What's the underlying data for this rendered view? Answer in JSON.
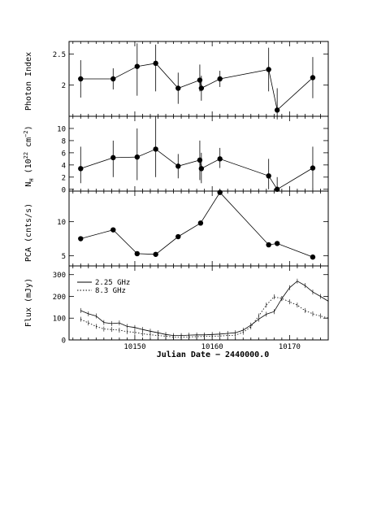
{
  "chart_data": [
    {
      "type": "scatter",
      "ylabel": "Photon Index",
      "xlim": [
        10141.5,
        10175
      ],
      "ylim": [
        1.5,
        2.7
      ],
      "yticks": [
        2,
        2.5
      ],
      "points": [
        {
          "x": 10143.0,
          "y": 2.1,
          "err": [
            0.3,
            0.3
          ]
        },
        {
          "x": 10147.2,
          "y": 2.1,
          "err": [
            0.17,
            0.17
          ]
        },
        {
          "x": 10150.3,
          "y": 2.3,
          "err": [
            0.47,
            0.37
          ]
        },
        {
          "x": 10152.7,
          "y": 2.35,
          "err": [
            0.45,
            0.3
          ]
        },
        {
          "x": 10155.6,
          "y": 1.95,
          "err": [
            0.25,
            0.25
          ]
        },
        {
          "x": 10158.4,
          "y": 2.08,
          "err": [
            0.18,
            0.25
          ]
        },
        {
          "x": 10158.6,
          "y": 1.95,
          "err": [
            0.2,
            0.2
          ]
        },
        {
          "x": 10161.0,
          "y": 2.1,
          "err": [
            0.13,
            0.13
          ]
        },
        {
          "x": 10167.3,
          "y": 2.25,
          "err": [
            0.35,
            0.35
          ]
        },
        {
          "x": 10168.4,
          "y": 1.6,
          "err": [
            0.15,
            0.35
          ]
        },
        {
          "x": 10173.0,
          "y": 2.12,
          "err": [
            0.33,
            0.33
          ]
        }
      ]
    },
    {
      "type": "scatter",
      "ylabel": "N_H (10^22 cm^-2)",
      "ylabel_main": "N",
      "ylabel_sub": "H",
      "ylabel_mid": " (10",
      "ylabel_sup1": "22",
      "ylabel_mid2": " cm",
      "ylabel_sup2": "−2",
      "ylabel_end": ")",
      "xlim": [
        10141.5,
        10175
      ],
      "ylim": [
        -0.3,
        12
      ],
      "yticks": [
        0,
        2,
        4,
        6,
        8,
        10
      ],
      "points": [
        {
          "x": 10143.0,
          "y": 3.4,
          "err": [
            2.4,
            3.6
          ]
        },
        {
          "x": 10147.2,
          "y": 5.2,
          "err": [
            3.2,
            2.8
          ]
        },
        {
          "x": 10150.3,
          "y": 5.3,
          "err": [
            3.8,
            4.7
          ]
        },
        {
          "x": 10152.7,
          "y": 6.6,
          "err": [
            4.6,
            5.4
          ]
        },
        {
          "x": 10155.6,
          "y": 3.8,
          "err": [
            2.0,
            2.0
          ]
        },
        {
          "x": 10158.4,
          "y": 4.8,
          "err": [
            3.3,
            3.2
          ]
        },
        {
          "x": 10158.6,
          "y": 3.4,
          "err": [
            2.4,
            2.6
          ]
        },
        {
          "x": 10161.0,
          "y": 5.0,
          "err": [
            1.5,
            1.8
          ]
        },
        {
          "x": 10167.3,
          "y": 2.2,
          "err": [
            2.2,
            2.8
          ]
        },
        {
          "x": 10168.4,
          "y": 0.0,
          "err": [
            0.0,
            2.0
          ]
        },
        {
          "x": 10173.0,
          "y": 3.5,
          "err": [
            3.5,
            3.5
          ]
        }
      ]
    },
    {
      "type": "line",
      "ylabel": "PCA (cnts/s)",
      "xlim": [
        10141.5,
        10175
      ],
      "ylim": [
        3.5,
        14.5
      ],
      "yticks": [
        5,
        10
      ],
      "points": [
        {
          "x": 10143.0,
          "y": 7.5
        },
        {
          "x": 10147.2,
          "y": 8.8
        },
        {
          "x": 10150.3,
          "y": 5.3
        },
        {
          "x": 10152.7,
          "y": 5.2
        },
        {
          "x": 10155.6,
          "y": 7.8
        },
        {
          "x": 10158.5,
          "y": 9.8
        },
        {
          "x": 10161.0,
          "y": 14.3
        },
        {
          "x": 10167.3,
          "y": 6.6
        },
        {
          "x": 10168.4,
          "y": 6.8
        },
        {
          "x": 10173.0,
          "y": 4.8
        }
      ]
    },
    {
      "type": "line",
      "ylabel": "Flux (mJy)",
      "xlabel": "Julian Date − 2440000.0",
      "xlim": [
        10141.5,
        10175
      ],
      "ylim": [
        0,
        340
      ],
      "yticks": [
        0,
        100,
        200,
        300
      ],
      "xticks": [
        10150,
        10160,
        10170
      ],
      "legend_position": "top-left",
      "series": [
        {
          "name": "2.25 GHz",
          "style": "solid",
          "x": [
            10143,
            10144,
            10145,
            10146,
            10147,
            10148,
            10149,
            10150,
            10151,
            10152,
            10153,
            10154,
            10155,
            10156,
            10157,
            10158,
            10159,
            10160,
            10161,
            10162,
            10163,
            10164,
            10165,
            10166,
            10167,
            10168,
            10169,
            10170,
            10171,
            10172,
            10173,
            10174,
            10175
          ],
          "y": [
            135,
            120,
            110,
            80,
            75,
            78,
            62,
            57,
            48,
            40,
            33,
            25,
            20,
            20,
            22,
            23,
            23,
            25,
            27,
            30,
            33,
            45,
            68,
            95,
            118,
            130,
            190,
            240,
            270,
            250,
            220,
            200,
            178
          ]
        },
        {
          "name": "8.3 GHz",
          "style": "dotted",
          "x": [
            10143,
            10144,
            10145,
            10146,
            10147,
            10148,
            10149,
            10150,
            10151,
            10152,
            10153,
            10154,
            10155,
            10156,
            10157,
            10158,
            10159,
            10160,
            10161,
            10162,
            10163,
            10164,
            10165,
            10166,
            10167,
            10168,
            10169,
            10170,
            10171,
            10172,
            10173,
            10174,
            10175
          ],
          "y": [
            95,
            78,
            62,
            50,
            48,
            45,
            38,
            35,
            28,
            24,
            20,
            17,
            13,
            13,
            14,
            15,
            16,
            17,
            18,
            20,
            22,
            35,
            60,
            110,
            160,
            198,
            190,
            175,
            160,
            135,
            120,
            110,
            100
          ]
        }
      ]
    }
  ]
}
